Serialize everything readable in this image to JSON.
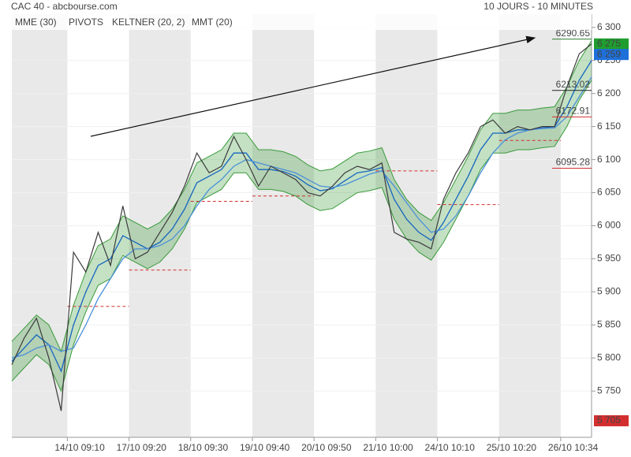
{
  "header": {
    "title": "CAC 40 - abcbourse.com",
    "period": "10 JOURS - 10 MINUTES"
  },
  "chart_data": {
    "type": "line",
    "categories": [
      null,
      null,
      null,
      null,
      null,
      "14/10 09:10",
      null,
      null,
      null,
      null,
      "17/10 09:20",
      null,
      null,
      null,
      null,
      "18/10 09:30",
      null,
      null,
      null,
      null,
      "19/10 09:40",
      null,
      null,
      null,
      null,
      "20/10 09:50",
      null,
      null,
      null,
      null,
      "21/10 10:00",
      null,
      null,
      null,
      null,
      "24/10 10:10",
      null,
      null,
      null,
      null,
      "25/10 10:20",
      null,
      null,
      null,
      null,
      "26/10 10:34",
      null,
      null
    ],
    "values": [
      5790,
      5830,
      5860,
      5800,
      5720,
      5960,
      5930,
      5990,
      5940,
      6030,
      5950,
      5960,
      5990,
      6020,
      6060,
      6110,
      6080,
      6090,
      6135,
      6100,
      6060,
      6090,
      6080,
      6070,
      6050,
      6045,
      6060,
      6080,
      6090,
      6085,
      6095,
      5990,
      5980,
      5975,
      5965,
      6040,
      6080,
      6110,
      6150,
      6160,
      6140,
      6150,
      6145,
      6150,
      6150,
      6210,
      6260,
      6275
    ],
    "color": "#3a3a3a",
    "series": [
      {
        "name": "MME (30)",
        "color": "#1565c0",
        "values": [
          5795,
          5815,
          5835,
          5820,
          5780,
          5850,
          5900,
          5940,
          5950,
          5985,
          5975,
          5965,
          5975,
          5995,
          6025,
          6065,
          6075,
          6085,
          6110,
          6110,
          6085,
          6085,
          6082,
          6075,
          6062,
          6053,
          6056,
          6068,
          6080,
          6083,
          6088,
          6040,
          6010,
          5990,
          5978,
          6005,
          6040,
          6075,
          6115,
          6140,
          6140,
          6145,
          6145,
          6148,
          6150,
          6180,
          6220,
          6250
        ]
      },
      {
        "name": "MMT (20)",
        "color": "#4a90d9",
        "values": [
          5800,
          5805,
          5815,
          5820,
          5810,
          5815,
          5850,
          5890,
          5920,
          5950,
          5965,
          5965,
          5970,
          5980,
          6000,
          6030,
          6055,
          6070,
          6090,
          6100,
          6095,
          6090,
          6085,
          6080,
          6070,
          6060,
          6058,
          6062,
          6070,
          6078,
          6083,
          6060,
          6035,
          6010,
          5990,
          5995,
          6015,
          6045,
          6080,
          6110,
          6130,
          6140,
          6145,
          6147,
          6148,
          6165,
          6195,
          6225
        ]
      }
    ],
    "keltner": {
      "name": "KELTNER (20, 2)",
      "color": "#3a9a3a",
      "upper": [
        5825,
        5845,
        5865,
        5850,
        5810,
        5880,
        5930,
        5970,
        5980,
        6015,
        6005,
        5995,
        6005,
        6025,
        6055,
        6095,
        6105,
        6115,
        6140,
        6140,
        6115,
        6115,
        6112,
        6105,
        6092,
        6083,
        6086,
        6098,
        6110,
        6113,
        6118,
        6070,
        6040,
        6020,
        6008,
        6035,
        6070,
        6105,
        6145,
        6170,
        6170,
        6175,
        6175,
        6178,
        6180,
        6210,
        6250,
        6280
      ],
      "lower": [
        5765,
        5785,
        5805,
        5790,
        5750,
        5820,
        5870,
        5910,
        5920,
        5955,
        5945,
        5935,
        5945,
        5965,
        5995,
        6035,
        6045,
        6055,
        6080,
        6080,
        6055,
        6055,
        6052,
        6045,
        6032,
        6023,
        6026,
        6038,
        6050,
        6053,
        6058,
        6010,
        5980,
        5960,
        5948,
        5975,
        6010,
        6045,
        6085,
        6110,
        6110,
        6115,
        6115,
        6118,
        6120,
        6150,
        6190,
        6220
      ]
    },
    "pivots": {
      "name": "PIVOTS",
      "color": "#d32f2f",
      "values": [
        null,
        5878,
        5933,
        6037,
        6045,
        null,
        6083,
        6032,
        6129,
        null
      ]
    },
    "levels": [
      {
        "value": 6290.65,
        "color": "#2e7d32"
      },
      {
        "value": 6213.02,
        "color": "#222222"
      },
      {
        "value": 6172.91,
        "color": "#d32f2f"
      },
      {
        "value": 6095.28,
        "color": "#d32f2f"
      }
    ],
    "price_tags": [
      {
        "value": 6275,
        "label": "6 275",
        "color": "#1f9e2f"
      },
      {
        "value": 6259,
        "label": "6 259",
        "color": "#1e6fd9"
      },
      {
        "value": 5705,
        "label": "5 705",
        "color": "#d32f2f"
      }
    ],
    "ylim": [
      5680,
      6320
    ],
    "yticks": [
      {
        "value": 5750,
        "label": "5 750"
      },
      {
        "value": 5800,
        "label": "5 800"
      },
      {
        "value": 5850,
        "label": "5 850"
      },
      {
        "value": 5900,
        "label": "5 900"
      },
      {
        "value": 5950,
        "label": "5 950"
      },
      {
        "value": 6000,
        "label": "6 000"
      },
      {
        "value": 6050,
        "label": "6 050"
      },
      {
        "value": 6100,
        "label": "6 100"
      },
      {
        "value": 6150,
        "label": "6 150"
      },
      {
        "value": 6200,
        "label": "6 200"
      },
      {
        "value": 6250,
        "label": "6 250"
      },
      {
        "value": 6300,
        "label": "6 300"
      }
    ],
    "grid": true
  }
}
